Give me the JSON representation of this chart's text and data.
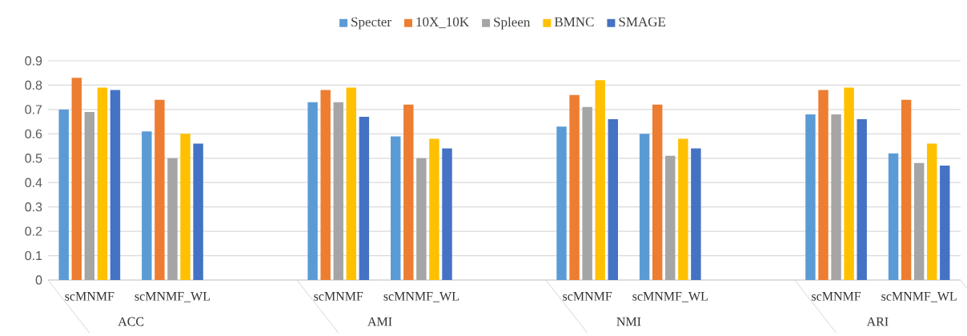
{
  "chart_data": {
    "type": "bar",
    "categories": [
      "scMNMF",
      "scMNMF_WL",
      null,
      "scMNMF",
      "scMNMF_WL",
      null,
      "scMNMF",
      "scMNMF_WL",
      null,
      "scMNMF",
      "scMNMF_WL"
    ],
    "series": [
      {
        "name": "Specter",
        "color": "#5b9bd5",
        "values": [
          0.7,
          0.61,
          null,
          0.73,
          0.59,
          null,
          0.63,
          0.6,
          null,
          0.68,
          0.52
        ]
      },
      {
        "name": "10X_10K",
        "color": "#ed7d31",
        "values": [
          0.83,
          0.74,
          null,
          0.78,
          0.72,
          null,
          0.76,
          0.72,
          null,
          0.78,
          0.74
        ]
      },
      {
        "name": "Spleen",
        "color": "#a5a5a5",
        "values": [
          0.69,
          0.5,
          null,
          0.73,
          0.5,
          null,
          0.71,
          0.51,
          null,
          0.68,
          0.48
        ]
      },
      {
        "name": "BMNC",
        "color": "#ffc000",
        "values": [
          0.79,
          0.6,
          null,
          0.79,
          0.58,
          null,
          0.82,
          0.58,
          null,
          0.79,
          0.56
        ]
      },
      {
        "name": "SMAGE",
        "color": "#4472c4",
        "values": [
          0.78,
          0.56,
          null,
          0.67,
          0.54,
          null,
          0.66,
          0.54,
          null,
          0.66,
          0.47
        ]
      }
    ],
    "annotations": [
      "ACC",
      "AMI",
      "NMI",
      "ARI"
    ],
    "ylim": [
      0,
      0.9
    ],
    "yticks": [
      0,
      0.1,
      0.2,
      0.3,
      0.4,
      0.5,
      0.6,
      0.7,
      0.8,
      0.9
    ],
    "grid": "y",
    "legend": "top"
  }
}
